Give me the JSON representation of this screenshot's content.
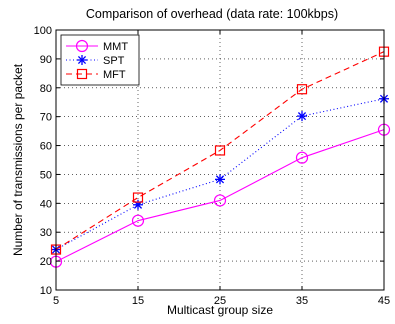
{
  "chart_data": {
    "type": "line",
    "title": "Comparison of overhead (data rate: 100kbps)",
    "xlabel": "Multicast group size",
    "ylabel": "Number of transmissions per packet",
    "x": [
      5,
      15,
      25,
      35,
      45
    ],
    "x_ticks": [
      "5",
      "15",
      "25",
      "35",
      "45"
    ],
    "y_ticks": [
      "10",
      "20",
      "30",
      "40",
      "50",
      "60",
      "70",
      "80",
      "90",
      "100"
    ],
    "xlim": [
      5,
      45
    ],
    "ylim": [
      10,
      100
    ],
    "grid": true,
    "legend_position": "top-left",
    "series": [
      {
        "name": "MMT",
        "values": [
          19.8,
          34,
          41,
          55.8,
          65.5
        ],
        "color": "#ff00ff",
        "line": "solid",
        "marker": "circle"
      },
      {
        "name": "SPT",
        "values": [
          24,
          39.5,
          48.3,
          70.2,
          76.2
        ],
        "color": "#0000ff",
        "line": "dotted",
        "marker": "asterisk"
      },
      {
        "name": "MFT",
        "values": [
          24,
          42,
          58.3,
          79.5,
          92.5
        ],
        "color": "#ff0000",
        "line": "dashed",
        "marker": "square"
      }
    ]
  }
}
